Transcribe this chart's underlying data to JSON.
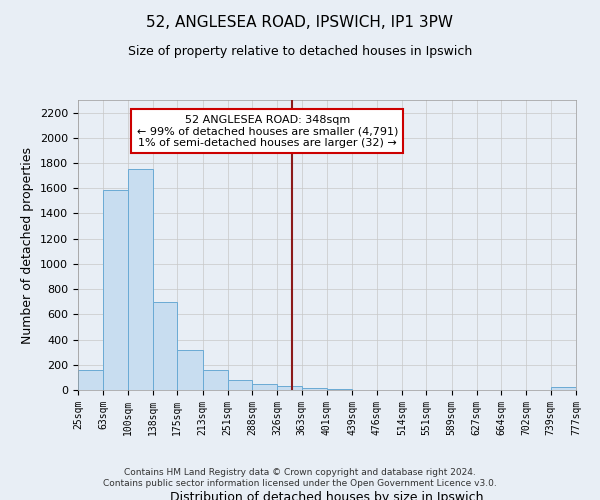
{
  "title": "52, ANGLESEA ROAD, IPSWICH, IP1 3PW",
  "subtitle": "Size of property relative to detached houses in Ipswich",
  "xlabel": "Distribution of detached houses by size in Ipswich",
  "ylabel": "Number of detached properties",
  "footer_lines": [
    "Contains HM Land Registry data © Crown copyright and database right 2024.",
    "Contains public sector information licensed under the Open Government Licence v3.0."
  ],
  "bar_edges": [
    25,
    63,
    100,
    138,
    175,
    213,
    251,
    288,
    326,
    363,
    401,
    439,
    476,
    514,
    551,
    589,
    627,
    664,
    702,
    739,
    777
  ],
  "bar_heights": [
    160,
    1590,
    1750,
    700,
    315,
    155,
    80,
    45,
    30,
    15,
    5,
    0,
    0,
    0,
    0,
    0,
    0,
    0,
    0,
    20
  ],
  "bar_color": "#c8ddf0",
  "bar_edge_color": "#6aaad4",
  "grid_color": "#c8c8c8",
  "vline_x": 348,
  "vline_color": "#8b1a1a",
  "annotation_title": "52 ANGLESEA ROAD: 348sqm",
  "annotation_line1": "← 99% of detached houses are smaller (4,791)",
  "annotation_line2": "1% of semi-detached houses are larger (32) →",
  "annotation_box_facecolor": "#ffffff",
  "annotation_box_edgecolor": "#cc0000",
  "tick_labels": [
    "25sqm",
    "63sqm",
    "100sqm",
    "138sqm",
    "175sqm",
    "213sqm",
    "251sqm",
    "288sqm",
    "326sqm",
    "363sqm",
    "401sqm",
    "439sqm",
    "476sqm",
    "514sqm",
    "551sqm",
    "589sqm",
    "627sqm",
    "664sqm",
    "702sqm",
    "739sqm",
    "777sqm"
  ],
  "ylim": [
    0,
    2300
  ],
  "yticks": [
    0,
    200,
    400,
    600,
    800,
    1000,
    1200,
    1400,
    1600,
    1800,
    2000,
    2200
  ],
  "background_color": "#e8eef5",
  "plot_bg_color": "#e8eef5"
}
